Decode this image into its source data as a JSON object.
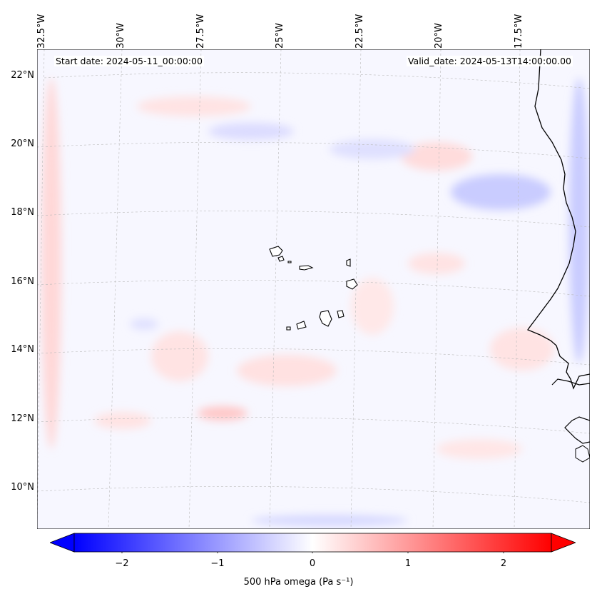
{
  "map": {
    "projection": "Lambert conformal",
    "title_left": "Start date: 2024-05-11_00:00:00",
    "title_right": "Valid_date: 2024-05-13T14:00:00.00",
    "lon_labels": [
      "32.5°W",
      "30°W",
      "27.5°W",
      "25°W",
      "22.5°W",
      "20°W",
      "17.5°W"
    ],
    "lat_labels": [
      "22°N",
      "20°N",
      "18°N",
      "16°N",
      "14°N",
      "12°N",
      "10°N"
    ],
    "features": [
      "Cape Verde islands",
      "West African coastline"
    ],
    "field": "500 hPa omega"
  },
  "colorbar": {
    "label": "500 hPa omega (Pa s⁻¹)",
    "ticks": [
      "−2",
      "−1",
      "0",
      "1",
      "2"
    ],
    "tick_values": [
      -2,
      -1,
      0,
      1,
      2
    ],
    "min": -2.5,
    "max": 2.5,
    "cmap": "bwr",
    "low_color": "#0000ff",
    "mid_color": "#ffffff",
    "high_color": "#ff0000"
  }
}
